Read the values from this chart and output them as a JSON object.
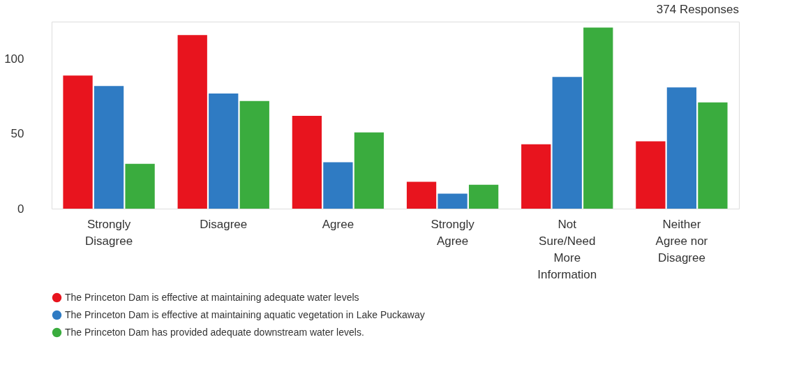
{
  "chart_data": {
    "type": "bar",
    "categories": [
      "Strongly Disagree",
      "Disagree",
      "Agree",
      "Strongly Agree",
      "Not Sure/Need More Information",
      "Neither Agree nor Disagree"
    ],
    "series": [
      {
        "name": "The Princeton Dam is effective at maintaining adequate water levels",
        "color": "#e8141e",
        "values": [
          89,
          116,
          62,
          18,
          43,
          45
        ]
      },
      {
        "name": "The Princeton Dam is effective at maintaining aquatic vegetation in Lake Puckaway",
        "color": "#2f7bc3",
        "values": [
          82,
          77,
          31,
          10,
          88,
          81
        ]
      },
      {
        "name": "The Princeton Dam has provided adequate downstream water levels.",
        "color": "#3aac3e",
        "values": [
          30,
          72,
          51,
          16,
          121,
          71
        ]
      }
    ],
    "ylim": [
      0,
      125
    ],
    "yticks": [
      0,
      50,
      100
    ],
    "grid": false,
    "legend": "bottom",
    "annotations": [
      "374 Responses"
    ]
  }
}
